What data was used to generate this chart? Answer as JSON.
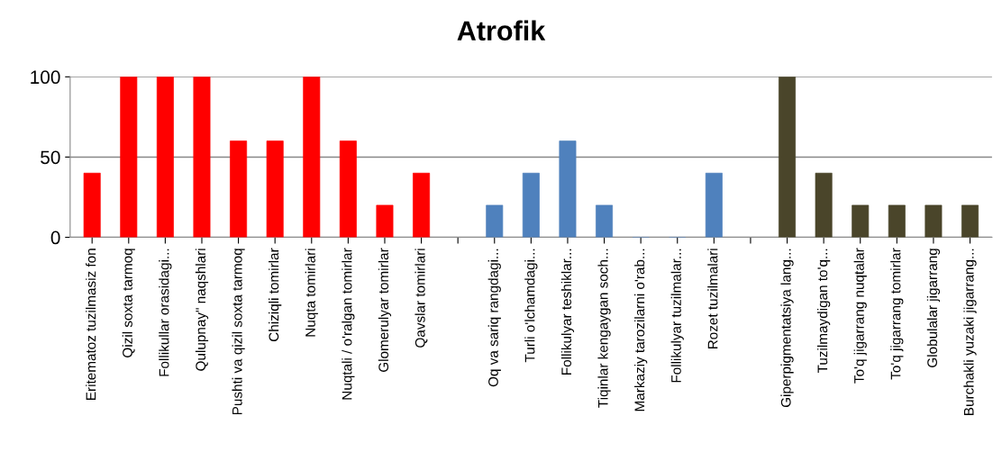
{
  "chart_data": {
    "type": "bar",
    "title": "Atrofik",
    "categories": [
      "Eritematoz tuzilmasiz fon",
      "Qizil soxta tarmoq",
      "Follikullar orasidagi...",
      "Qulupnay\" naqshlari",
      "Pushti va qizil soxta tarmoq",
      "Chiziqli tomirlar",
      "Nuqta tomirlari",
      "Nuqtali / o'ralgan tomirlar",
      "Glomerulyar tomirlar",
      "Qavslar tomirlari",
      null,
      "Oq va sariq rangdagi...",
      "Turli o'lchamdagi...",
      "Follikulyar teshiklar...",
      "Tiqinlar kengaygan soch...",
      "Markaziy tarozilarni o'rab...",
      "Follikulyar tuzilmalar...",
      "Rozet tuzilmalari",
      null,
      "Giperpigmentatsiya lang...",
      "Tuzilmaydigan to'q...",
      "To'q jigarrang nuqtalar",
      "To'q jigarrang tomirlar",
      "Globulalar jigarrang",
      "Burchakli yuzaki jigarrang..."
    ],
    "values": [
      40,
      100,
      100,
      100,
      60,
      60,
      100,
      60,
      20,
      40,
      null,
      20,
      40,
      60,
      20,
      0,
      0,
      40,
      null,
      100,
      40,
      20,
      20,
      20,
      20
    ],
    "colors": [
      "#ff0000",
      "#ff0000",
      "#ff0000",
      "#ff0000",
      "#ff0000",
      "#ff0000",
      "#ff0000",
      "#ff0000",
      "#ff0000",
      "#ff0000",
      null,
      "#4f81bd",
      "#4f81bd",
      "#4f81bd",
      "#4f81bd",
      "#4f81bd",
      "#4f81bd",
      "#4f81bd",
      null,
      "#4a452a",
      "#4a452a",
      "#4a452a",
      "#4a452a",
      "#4a452a",
      "#4a452a"
    ],
    "ylim": [
      0,
      100
    ],
    "yticks": [
      0,
      50,
      100
    ],
    "grid": "y",
    "legend": false
  }
}
